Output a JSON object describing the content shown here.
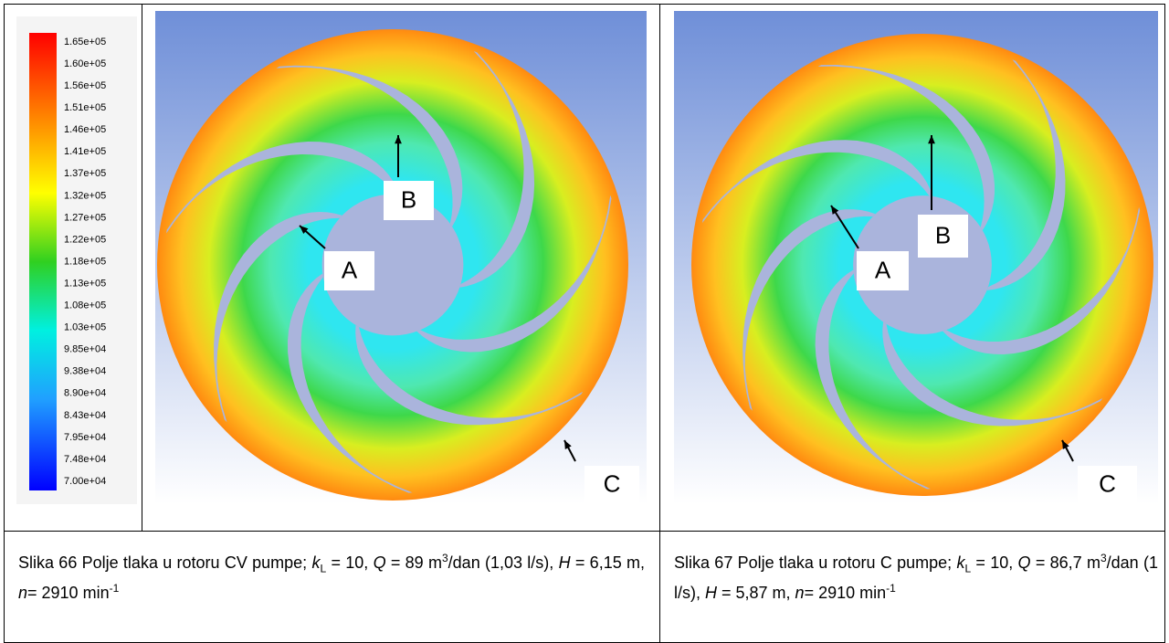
{
  "colorbar": {
    "labels": [
      "1.65e+05",
      "1.60e+05",
      "1.56e+05",
      "1.51e+05",
      "1.46e+05",
      "1.41e+05",
      "1.37e+05",
      "1.32e+05",
      "1.27e+05",
      "1.22e+05",
      "1.18e+05",
      "1.13e+05",
      "1.08e+05",
      "1.03e+05",
      "9.85e+04",
      "9.38e+04",
      "8.90e+04",
      "8.43e+04",
      "7.95e+04",
      "7.48e+04",
      "7.00e+04"
    ]
  },
  "figures": [
    {
      "labels": {
        "a": "A",
        "b": "B",
        "c": "C"
      },
      "caption": [
        "Slika 66 Polje tlaka u rotoru CV pumpe; ",
        "k",
        "L",
        " = 10, ",
        "Q",
        " = 89 m",
        "3",
        "/dan (1,03 l/s), ",
        "H",
        " =  6,15 m, ",
        "n",
        "= 2910 min",
        "-1"
      ]
    },
    {
      "labels": {
        "a": "A",
        "b": "B",
        "c": "C"
      },
      "caption": [
        "Slika 67 Polje tlaka u rotoru C pumpe; ",
        "k",
        "L",
        " = 10, ",
        "Q",
        " = 86,7 m",
        "3",
        "/dan (1 l/s), ",
        "H",
        " = 5,87 m, ",
        "n",
        "= 2910 min",
        "-1"
      ]
    }
  ]
}
